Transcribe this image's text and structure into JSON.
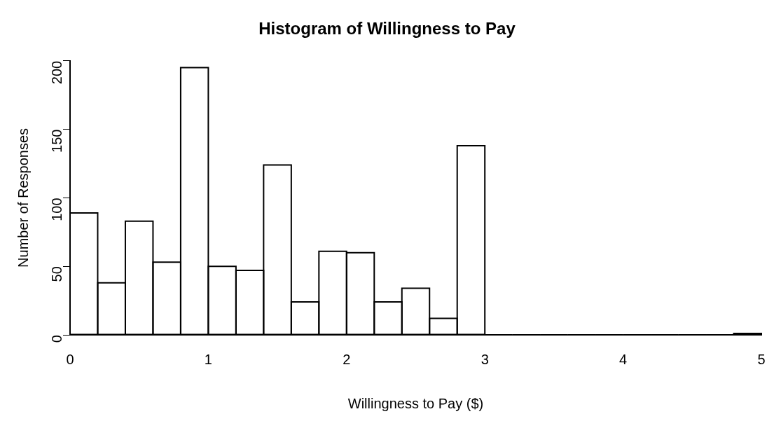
{
  "chart_data": {
    "type": "histogram",
    "title": "Histogram of Willingness to Pay",
    "xlabel": "Willingness to Pay ($)",
    "ylabel": "Number of Responses",
    "bins": [
      0,
      0.2,
      0.4,
      0.6,
      0.8,
      1,
      1.2,
      1.4,
      1.6,
      1.8,
      2,
      2.2,
      2.4,
      2.6,
      2.8,
      3,
      3.2,
      3.4,
      3.6,
      3.8,
      4,
      4.2,
      4.4,
      4.6,
      4.8,
      5
    ],
    "values": [
      89,
      38,
      83,
      53,
      195,
      50,
      47,
      124,
      24,
      61,
      60,
      24,
      34,
      12,
      138,
      0,
      0,
      0,
      0,
      0,
      0,
      0,
      0,
      0,
      1
    ],
    "color": "#ffffff",
    "xlim": [
      0,
      5
    ],
    "xticks": [
      0,
      1,
      2,
      3,
      4,
      5
    ],
    "ylim": [
      0,
      200
    ],
    "yticks": [
      0,
      50,
      100,
      150,
      200
    ],
    "grid": false,
    "legend": false
  }
}
